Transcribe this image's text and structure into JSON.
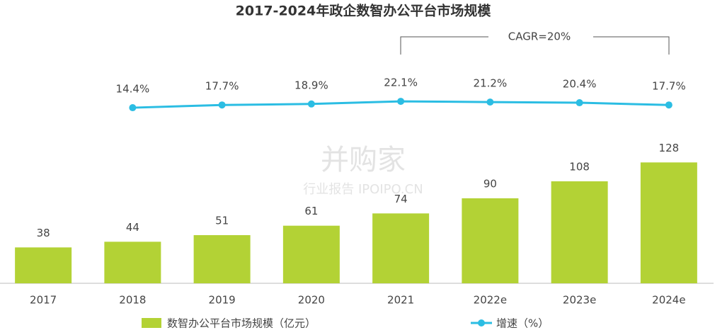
{
  "chart_data": {
    "type": "bar",
    "title": "2017-2024年政企数智办公平台市场规模",
    "categories": [
      "2017",
      "2018",
      "2019",
      "2020",
      "2021",
      "2022e",
      "2023e",
      "2024e"
    ],
    "series": [
      {
        "name": "数智办公平台市场规模（亿元）",
        "type": "bar",
        "color": "#b3d235",
        "values": [
          38,
          44,
          51,
          61,
          74,
          90,
          108,
          128
        ]
      },
      {
        "name": "增速（%）",
        "type": "line",
        "axis": "y2",
        "color": "#2bbde3",
        "values": [
          null,
          14.4,
          17.7,
          18.9,
          22.1,
          21.2,
          20.4,
          17.7
        ],
        "value_labels": [
          null,
          "14.4%",
          "17.7%",
          "18.9%",
          "22.1%",
          "21.2%",
          "20.4%",
          "17.7%"
        ]
      }
    ],
    "annotation": "CAGR=20%",
    "watermark": [
      "并购家",
      "行业报告 IPOIPO.CN"
    ],
    "ylim": [
      0,
      225
    ],
    "y2lim": [
      -198,
      59
    ],
    "legend": "bottom"
  }
}
